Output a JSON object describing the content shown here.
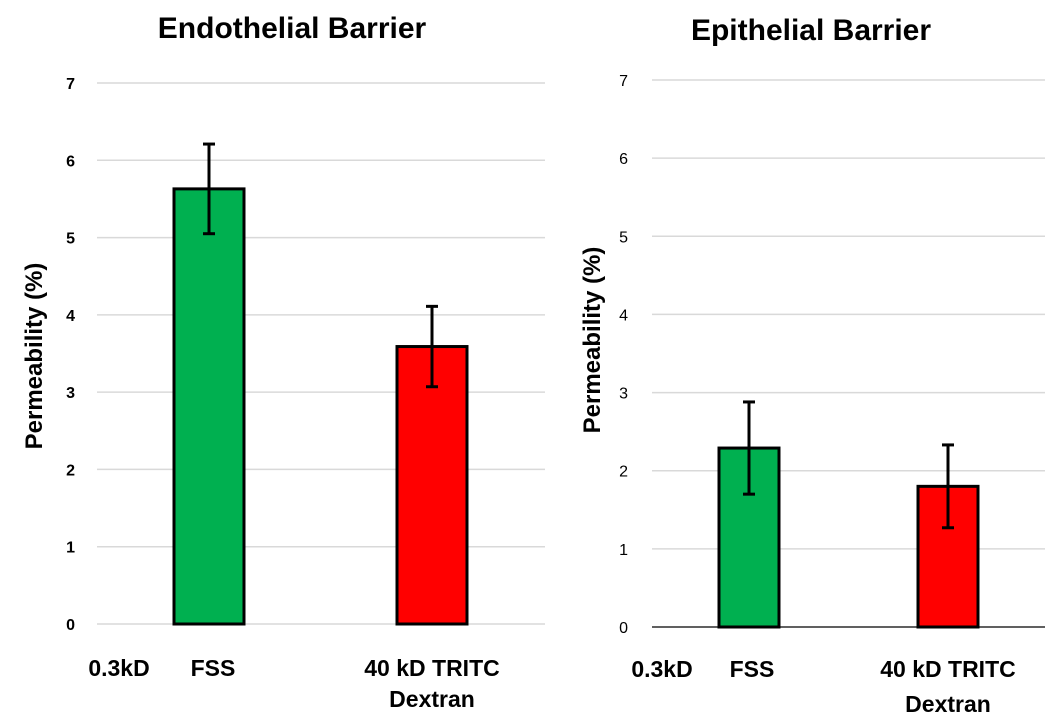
{
  "chart_data": [
    {
      "type": "bar",
      "title": "Endothelial Barrier",
      "ylabel": "Permeability (%)",
      "ylim": [
        0,
        7
      ],
      "yticks": [
        0,
        1,
        2,
        3,
        4,
        5,
        6,
        7
      ],
      "grid": true,
      "categories": [
        [
          "0.3kD",
          "FSS"
        ],
        [
          "40 kD TRITC",
          "Dextran"
        ]
      ],
      "values": [
        5.63,
        3.59
      ],
      "error": [
        0.58,
        0.52
      ],
      "colors": [
        "#00b050",
        "#ff0000"
      ]
    },
    {
      "type": "bar",
      "title": "Epithelial Barrier",
      "ylabel": "Permeability (%)",
      "ylim": [
        0,
        7
      ],
      "yticks": [
        0,
        1,
        2,
        3,
        4,
        5,
        6,
        7
      ],
      "grid": true,
      "categories": [
        [
          "0.3kD",
          "FSS"
        ],
        [
          "40 kD TRITC",
          "Dextran"
        ]
      ],
      "values": [
        2.29,
        1.8
      ],
      "error": [
        0.59,
        0.53
      ],
      "colors": [
        "#00b050",
        "#ff0000"
      ]
    }
  ]
}
